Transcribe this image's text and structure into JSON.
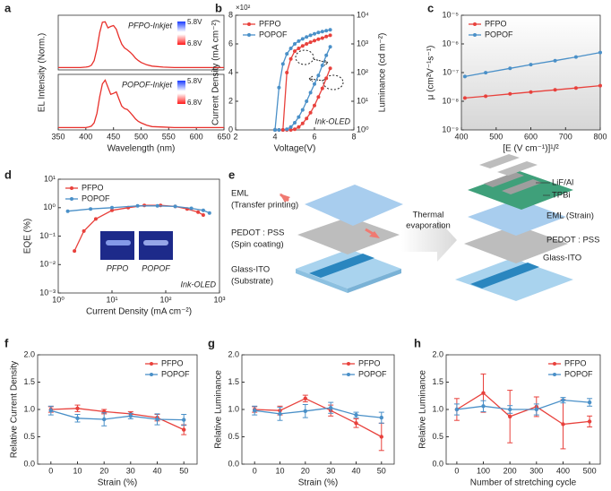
{
  "chart_data": [
    {
      "type": "line",
      "panel": "a",
      "ylabel": "EL Intensity (Norm.)",
      "x": [
        350,
        360,
        370,
        380,
        390,
        400,
        405,
        410,
        415,
        420,
        425,
        430,
        435,
        440,
        445,
        450,
        455,
        460,
        465,
        470,
        475,
        480,
        485,
        490,
        495,
        500,
        510,
        520,
        540,
        560,
        580,
        600,
        620,
        650
      ],
      "xlim": [
        350,
        650
      ],
      "ylim": [
        -0.05,
        1.12
      ],
      "series": [
        {
          "name": "PFPO-Inkjet",
          "color": "#e8302b",
          "values": [
            0,
            0,
            0,
            0,
            0,
            0.01,
            0.02,
            0.05,
            0.15,
            0.4,
            0.75,
            0.97,
            0.98,
            0.85,
            0.88,
            0.9,
            0.82,
            0.65,
            0.5,
            0.42,
            0.38,
            0.33,
            0.27,
            0.2,
            0.15,
            0.11,
            0.06,
            0.03,
            0.01,
            0,
            0,
            0,
            0,
            0
          ]
        }
      ],
      "colorbar_labels": [
        "5.8V",
        "6.8V"
      ]
    },
    {
      "type": "line",
      "xlabel": "Wavelength (nm)",
      "x": [
        350,
        360,
        370,
        380,
        390,
        400,
        405,
        410,
        415,
        420,
        425,
        430,
        435,
        440,
        445,
        450,
        455,
        460,
        465,
        470,
        475,
        480,
        485,
        490,
        495,
        500,
        510,
        520,
        540,
        560,
        580,
        600,
        620,
        650
      ],
      "xlim": [
        350,
        650
      ],
      "xticks": [
        350,
        400,
        450,
        500,
        550,
        600,
        650
      ],
      "ylim": [
        -0.05,
        1.12
      ],
      "series": [
        {
          "name": "POPOF-Inkjet",
          "color": "#e8302b",
          "values": [
            0,
            0,
            0,
            0,
            0,
            0,
            0.01,
            0.03,
            0.1,
            0.3,
            0.65,
            0.92,
            1.0,
            0.85,
            0.7,
            0.72,
            0.75,
            0.6,
            0.45,
            0.4,
            0.38,
            0.32,
            0.25,
            0.18,
            0.13,
            0.1,
            0.05,
            0.02,
            0.01,
            0,
            0,
            0,
            0,
            0
          ]
        }
      ],
      "colorbar_labels": [
        "5.8V",
        "6.8V"
      ]
    },
    {
      "type": "line",
      "panel": "b",
      "markers": true,
      "legend": "upper left",
      "annotation": "Ink-OLED",
      "x": [
        4.0,
        4.2,
        4.4,
        4.6,
        4.8,
        5.0,
        5.2,
        5.4,
        5.6,
        5.8,
        6.0,
        6.2,
        6.4,
        6.6,
        6.8
      ],
      "xlim": [
        2,
        8
      ],
      "xticks": [
        2,
        4,
        6,
        8
      ],
      "xlabel": "Voltage(V)",
      "ylim": [
        0,
        8
      ],
      "yticks": [
        0,
        2,
        4,
        6,
        8
      ],
      "ylabel": "Current Density (mA cm⁻²)",
      "y_multiplier": "×10²",
      "y2lim": [
        1,
        10000
      ],
      "y2scale": "log",
      "y2ticks": [
        {
          "value": 1,
          "label": "10⁰"
        },
        {
          "value": 10,
          "label": "10¹"
        },
        {
          "value": 100,
          "label": "10²"
        },
        {
          "value": 1000,
          "label": "10³"
        },
        {
          "value": 10000,
          "label": "10⁴"
        }
      ],
      "y2label": "Luminance (cd m⁻²)",
      "series": [
        {
          "name": "PFPO",
          "color": "#e8413c",
          "values": [
            0,
            0,
            0,
            0,
            0,
            0.05,
            0.2,
            0.45,
            0.8,
            1.2,
            1.7,
            2.3,
            2.9,
            3.6,
            4.3
          ]
        },
        {
          "name": "POPOF",
          "color": "#4a90c8",
          "values": [
            0,
            0,
            0,
            0.05,
            0.2,
            0.5,
            0.9,
            1.4,
            2.0,
            2.6,
            3.2,
            3.8,
            4.5,
            5.2,
            5.8
          ]
        },
        {
          "color": "#e8413c",
          "axis": "y2",
          "values": [
            null,
            null,
            1,
            100,
            300,
            560,
            700,
            850,
            1000,
            1150,
            1300,
            1450,
            1600,
            1800,
            2000
          ]
        },
        {
          "color": "#4a90c8",
          "axis": "y2",
          "values": [
            1,
            30,
            200,
            450,
            700,
            1000,
            1250,
            1500,
            1750,
            2000,
            2250,
            2500,
            2700,
            2900,
            3100
          ]
        }
      ]
    },
    {
      "type": "line",
      "panel": "c",
      "markers": true,
      "legend": "upper left",
      "x": [
        410,
        470,
        540,
        600,
        670,
        730,
        800
      ],
      "xlim": [
        400,
        800
      ],
      "xticks": [
        400,
        500,
        600,
        700,
        800
      ],
      "xlabel": "[E (V cm⁻¹)]¹/²",
      "ylim": [
        1e-09,
        1e-05
      ],
      "yscale": "log",
      "yticks": [
        {
          "value": 1e-09,
          "label": "10⁻⁹"
        },
        {
          "value": 1e-08,
          "label": "10⁻⁸"
        },
        {
          "value": 1e-07,
          "label": "10⁻⁷"
        },
        {
          "value": 1e-06,
          "label": "10⁻⁶"
        },
        {
          "value": 1e-05,
          "label": "10⁻⁵"
        }
      ],
      "ylabel": "μ (cm²V⁻¹s⁻¹)",
      "series": [
        {
          "name": "PFPO",
          "color": "#e8413c",
          "values": [
            1.3e-08,
            1.5e-08,
            1.8e-08,
            2.1e-08,
            2.5e-08,
            2.9e-08,
            3.5e-08
          ]
        },
        {
          "name": "POPOF",
          "color": "#4a90c8",
          "values": [
            7.3e-08,
            9.9e-08,
            1.4e-07,
            1.9e-07,
            2.6e-07,
            3.5e-07,
            5e-07
          ]
        }
      ]
    },
    {
      "type": "line",
      "panel": "d",
      "markers": true,
      "legend": "upper left",
      "annotation": "Ink-OLED",
      "inset_labels": [
        "PFPO",
        "POPOF"
      ],
      "xlim": [
        1,
        1000
      ],
      "xscale": "log",
      "xticks": [
        {
          "value": 1,
          "label": "10⁰"
        },
        {
          "value": 10,
          "label": "10¹"
        },
        {
          "value": 100,
          "label": "10²"
        },
        {
          "value": 1000,
          "label": "10³"
        }
      ],
      "xlabel": "Current Density (mA cm⁻²)",
      "ylim": [
        0.001,
        10
      ],
      "yscale": "log",
      "yticks": [
        {
          "value": 0.001,
          "label": "10⁻³"
        },
        {
          "value": 0.01,
          "label": "10⁻²"
        },
        {
          "value": 0.1,
          "label": "10⁻¹"
        },
        {
          "value": 1,
          "label": "10⁰"
        },
        {
          "value": 10,
          "label": "10¹"
        }
      ],
      "ylabel": "EQE (%)",
      "series": [
        {
          "name": "PFPO",
          "color": "#e8413c",
          "x": [
            2,
            3,
            5,
            10,
            20,
            40,
            80,
            150,
            250,
            400,
            500
          ],
          "values": [
            0.03,
            0.15,
            0.4,
            0.8,
            1.0,
            1.2,
            1.2,
            1.1,
            0.9,
            0.7,
            0.55
          ]
        },
        {
          "name": "POPOF",
          "color": "#4a90c8",
          "x": [
            1.5,
            4,
            10,
            30,
            70,
            150,
            300,
            500,
            650
          ],
          "values": [
            0.75,
            0.9,
            1.0,
            1.15,
            1.15,
            1.1,
            0.95,
            0.8,
            0.65
          ]
        }
      ]
    },
    {
      "type": "errorbar",
      "panel": "f",
      "legend": "upper right",
      "x": [
        0,
        10,
        20,
        30,
        40,
        50
      ],
      "xlim": [
        -5,
        55
      ],
      "xticks": [
        0,
        10,
        20,
        30,
        40,
        50
      ],
      "xlabel": "Strain (%)",
      "ylim": [
        0,
        2
      ],
      "yticks": [
        {
          "value": 0,
          "label": "0.0"
        },
        0.5,
        {
          "value": 1,
          "label": "1.0"
        },
        1.5,
        {
          "value": 2,
          "label": "2.0"
        }
      ],
      "ylabel": "Relative Current Density",
      "series": [
        {
          "name": "PFPO",
          "color": "#e8413c",
          "values": [
            1.0,
            1.02,
            0.96,
            0.92,
            0.85,
            0.63
          ],
          "errors": [
            0.05,
            0.06,
            0.04,
            0.04,
            0.06,
            0.09
          ]
        },
        {
          "name": "POPOF",
          "color": "#4a90c8",
          "values": [
            0.98,
            0.84,
            0.82,
            0.88,
            0.82,
            0.81
          ],
          "errors": [
            0.08,
            0.07,
            0.12,
            0.05,
            0.1,
            0.1
          ]
        }
      ]
    },
    {
      "type": "errorbar",
      "panel": "g",
      "legend": "upper right",
      "x": [
        0,
        10,
        20,
        30,
        40,
        50
      ],
      "xlim": [
        -5,
        55
      ],
      "xticks": [
        0,
        10,
        20,
        30,
        40,
        50
      ],
      "xlabel": "Strain (%)",
      "ylim": [
        0,
        2
      ],
      "yticks": [
        {
          "value": 0,
          "label": "0.0"
        },
        0.5,
        {
          "value": 1,
          "label": "1.0"
        },
        1.5,
        {
          "value": 2,
          "label": "2.0"
        }
      ],
      "ylabel": "Relative Luminance",
      "series": [
        {
          "name": "PFPO",
          "color": "#e8413c",
          "values": [
            1.0,
            0.98,
            1.2,
            0.98,
            0.75,
            0.5
          ],
          "errors": [
            0.05,
            0.08,
            0.06,
            0.1,
            0.08,
            0.25
          ]
        },
        {
          "name": "POPOF",
          "color": "#4a90c8",
          "values": [
            0.98,
            0.92,
            0.97,
            1.03,
            0.9,
            0.85
          ],
          "errors": [
            0.08,
            0.12,
            0.12,
            0.1,
            0.05,
            0.1
          ]
        }
      ]
    },
    {
      "type": "errorbar",
      "panel": "h",
      "legend": "upper right",
      "x": [
        0,
        100,
        200,
        300,
        400,
        500
      ],
      "xlim": [
        -40,
        540
      ],
      "xticks": [
        0,
        100,
        200,
        300,
        400,
        500
      ],
      "xlabel": "Number of stretching cycle",
      "ylim": [
        0,
        2
      ],
      "yticks": [
        {
          "value": 0,
          "label": "0.0"
        },
        0.5,
        {
          "value": 1,
          "label": "1.0"
        },
        1.5,
        {
          "value": 2,
          "label": "2.0"
        }
      ],
      "ylabel": "Relative Luminance",
      "series": [
        {
          "name": "PFPO",
          "color": "#e8413c",
          "values": [
            1.0,
            1.3,
            0.87,
            1.05,
            0.73,
            0.78
          ],
          "errors": [
            0.2,
            0.35,
            0.48,
            0.18,
            0.45,
            0.1
          ]
        },
        {
          "name": "POPOF",
          "color": "#4a90c8",
          "values": [
            1.0,
            1.06,
            1.0,
            1.0,
            1.17,
            1.13
          ],
          "errors": [
            0.1,
            0.1,
            0.07,
            0.1,
            0.05,
            0.07
          ]
        }
      ]
    }
  ],
  "diagram": {
    "panel": "e",
    "left_layers": [
      {
        "label": "EML",
        "note": "(Transfer printing)"
      },
      {
        "label": "PEDOT : PSS",
        "note": "(Spin coating)"
      },
      {
        "label": "Glass-ITO",
        "note": "(Substrate)"
      }
    ],
    "process": [
      "Thermal",
      "evaporation"
    ],
    "right_layers": [
      "LiF/Al",
      "TPBi",
      "EML (Strain)",
      "PEDOT : PSS",
      "Glass-ITO"
    ]
  }
}
